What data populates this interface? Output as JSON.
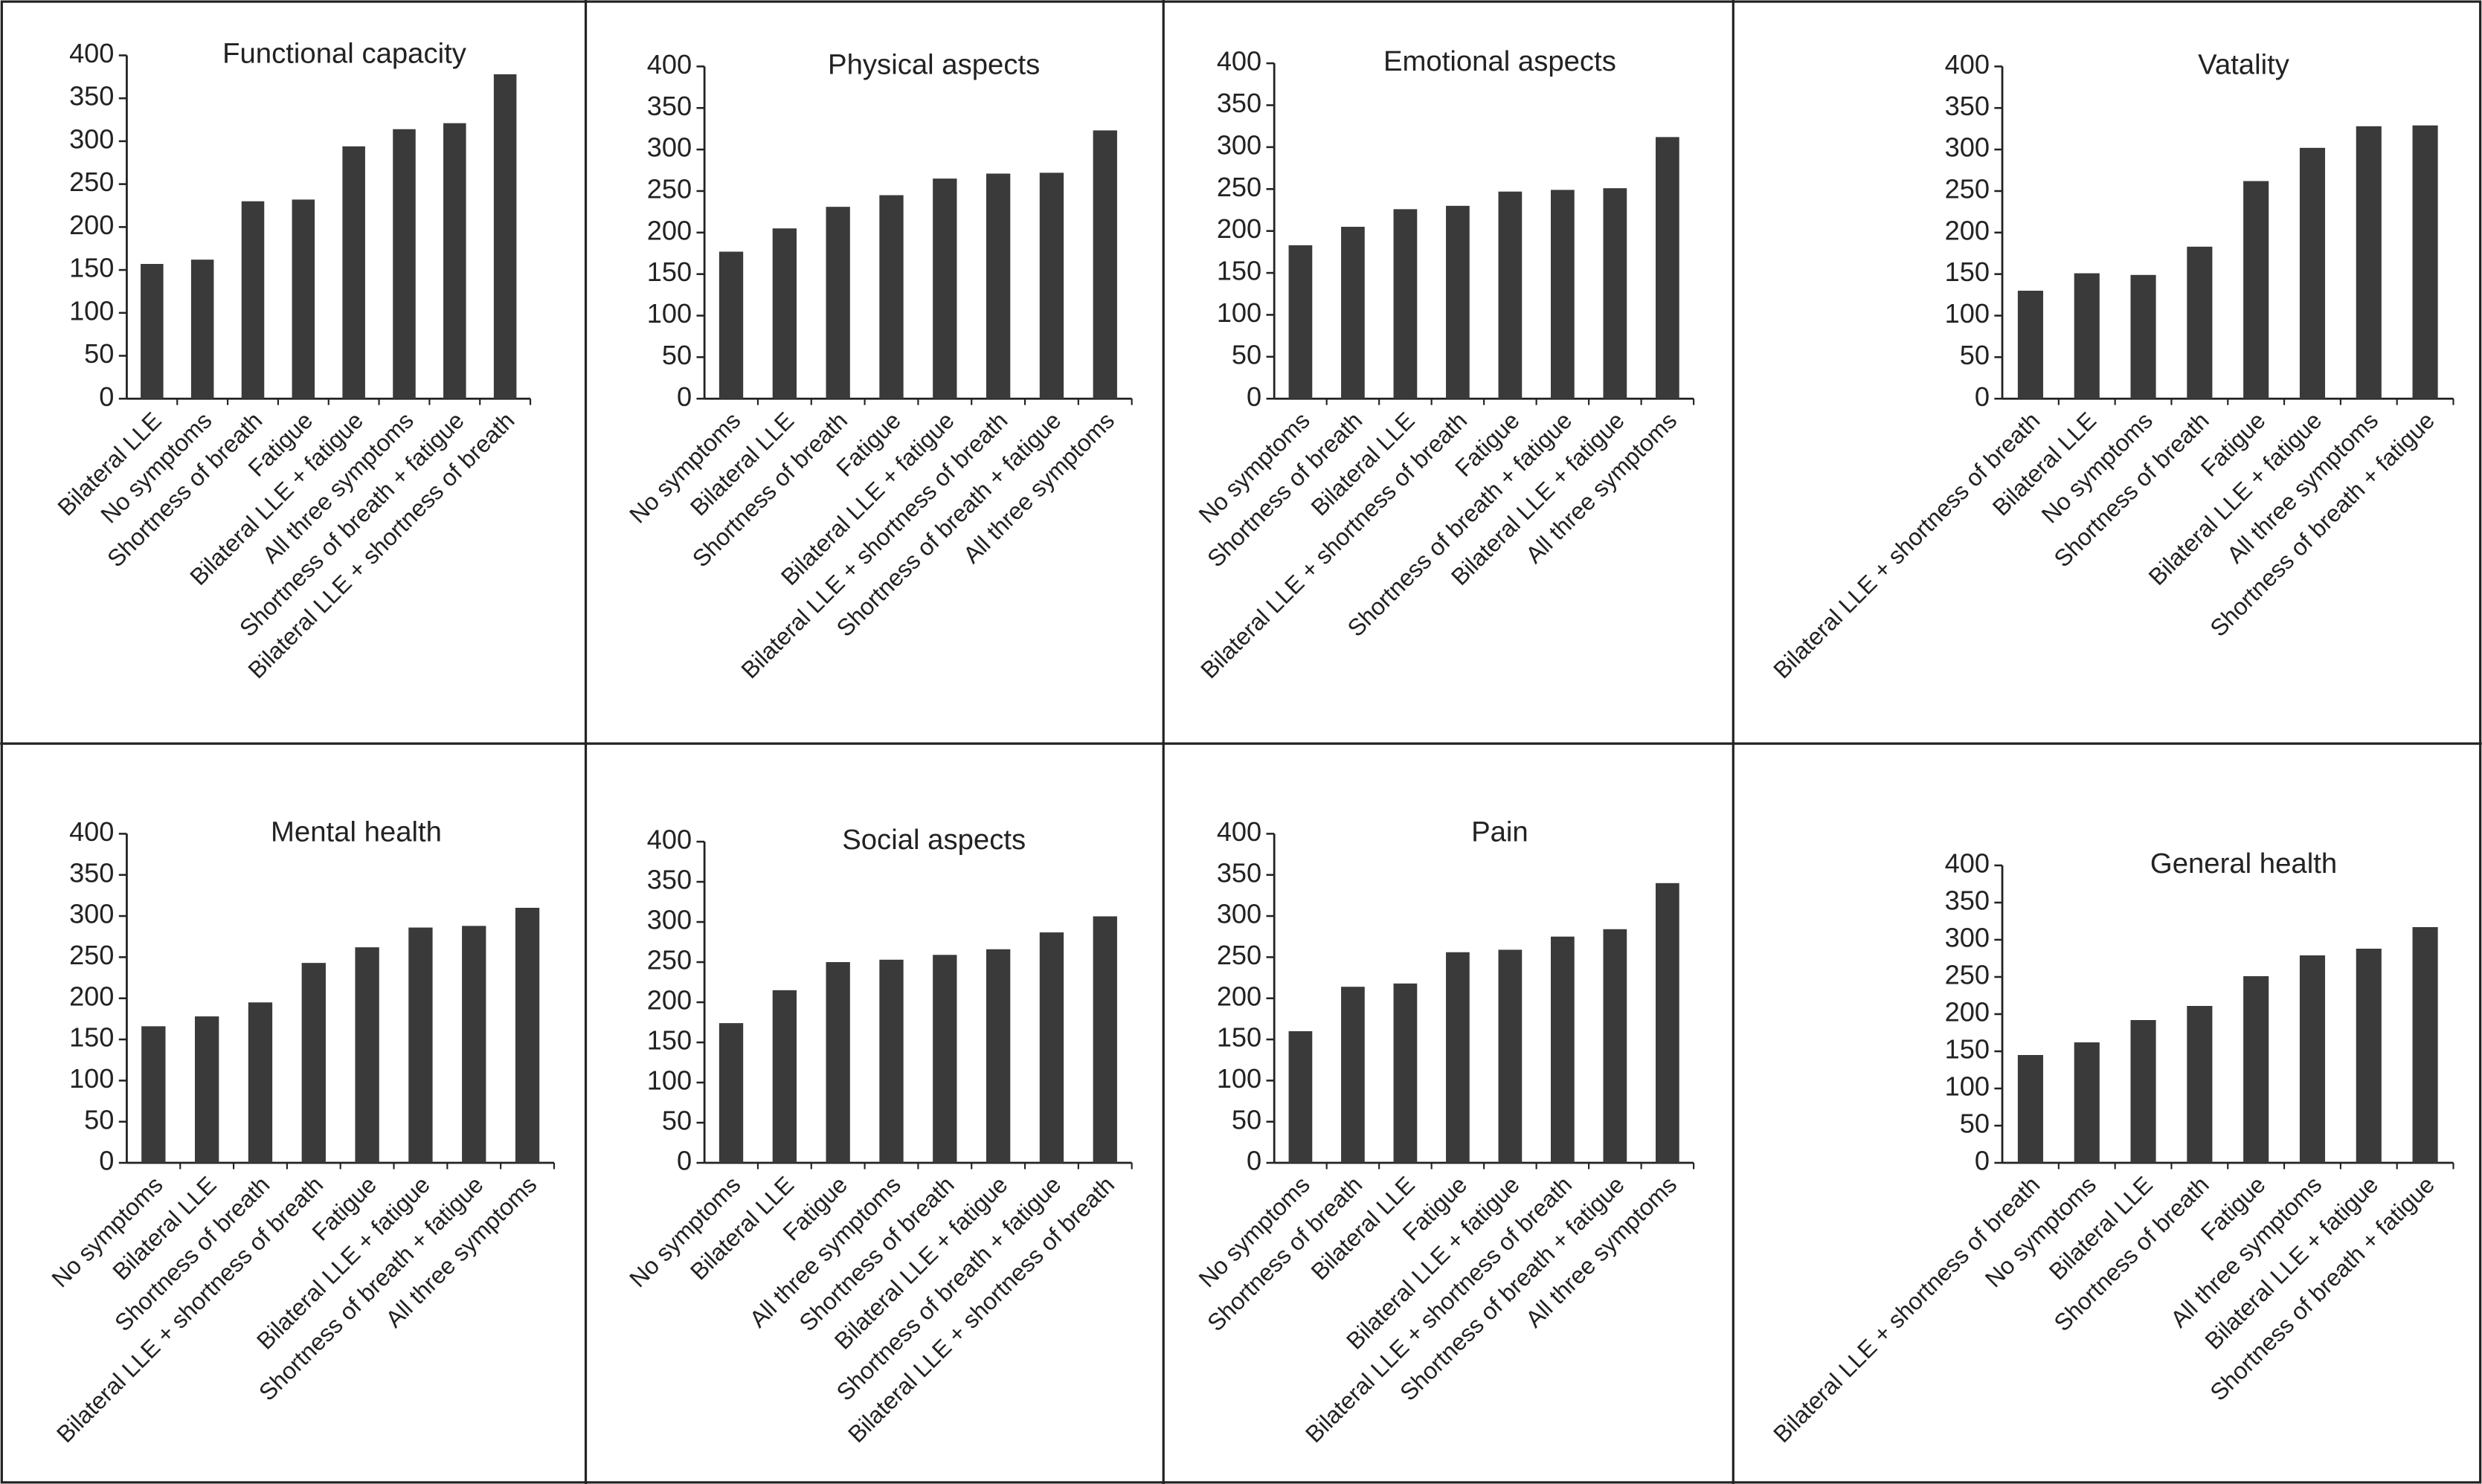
{
  "chart_data": [
    {
      "type": "bar",
      "title": "Functional capacity",
      "color": "#3a3a3a",
      "categories": [
        "Bilateral LLE",
        "No symptoms",
        "Shortness of breath",
        "Fatigue",
        "Bilateral LLE + fatigue",
        "All three symptoms",
        "Shortness of breath + fatigue",
        "Bilateral LLE + shortness of breath"
      ],
      "values": [
        157,
        162,
        230,
        232,
        294,
        314,
        321,
        378
      ],
      "ylim": [
        0,
        400
      ],
      "yticks": [
        0,
        50,
        100,
        150,
        200,
        250,
        300,
        350,
        400
      ]
    },
    {
      "type": "bar",
      "title": "Physical aspects",
      "color": "#3a3a3a",
      "categories": [
        "No symptoms",
        "Bilateral LLE",
        "Shortness of breath",
        "Fatigue",
        "Bilateral LLE + fatigue",
        "Bilateral LLE + shortness of breath",
        "Shortness of breath + fatigue",
        "All three symptoms"
      ],
      "values": [
        177,
        205,
        231,
        245,
        265,
        271,
        272,
        323
      ],
      "ylim": [
        0,
        400
      ],
      "yticks": [
        0,
        50,
        100,
        150,
        200,
        250,
        300,
        350,
        400
      ]
    },
    {
      "type": "bar",
      "title": "Emotional aspects",
      "color": "#3a3a3a",
      "categories": [
        "No symptoms",
        "Shortness of breath",
        "Bilateral LLE",
        "Bilateral LLE + shortness of breath",
        "Fatigue",
        "Shortness of breath + fatigue",
        "Bilateral LLE + fatigue",
        "All three symptoms"
      ],
      "values": [
        183,
        205,
        226,
        230,
        247,
        249,
        251,
        312
      ],
      "ylim": [
        0,
        400
      ],
      "yticks": [
        0,
        50,
        100,
        150,
        200,
        250,
        300,
        350,
        400
      ]
    },
    {
      "type": "bar",
      "title": "Vatality",
      "color": "#3a3a3a",
      "categories": [
        "Bilateral LLE + shortness of breath",
        "Bilateral LLE",
        "No symptoms",
        "Shortness of breath",
        "Fatigue",
        "Bilateral LLE + fatigue",
        "All three symptoms",
        "Shortness of breath + fatigue"
      ],
      "values": [
        130,
        151,
        149,
        183,
        262,
        302,
        328,
        329
      ],
      "ylim": [
        0,
        400
      ],
      "yticks": [
        0,
        50,
        100,
        150,
        200,
        250,
        300,
        350,
        400
      ]
    },
    {
      "type": "bar",
      "title": "Mental health",
      "color": "#3a3a3a",
      "categories": [
        "No symptoms",
        "Bilateral LLE",
        "Shortness of breath",
        "Bilateral LLE + shortness of breath",
        "Fatigue",
        "Bilateral LLE + fatigue",
        "Shortness of breath + fatigue",
        "All three symptoms"
      ],
      "values": [
        166,
        178,
        195,
        243,
        262,
        286,
        288,
        310
      ],
      "ylim": [
        0,
        400
      ],
      "yticks": [
        0,
        50,
        100,
        150,
        200,
        250,
        300,
        350,
        400
      ]
    },
    {
      "type": "bar",
      "title": "Social aspects",
      "color": "#3a3a3a",
      "categories": [
        "No symptoms",
        "Bilateral LLE",
        "Fatigue",
        "All three symptoms",
        "Shortness of breath",
        "Bilateral LLE + fatigue",
        "Shortness of breath + fatigue",
        "Bilateral LLE + shortness of breath"
      ],
      "values": [
        174,
        215,
        250,
        253,
        259,
        266,
        287,
        307
      ],
      "ylim": [
        0,
        400
      ],
      "yticks": [
        0,
        50,
        100,
        150,
        200,
        250,
        300,
        350,
        400
      ]
    },
    {
      "type": "bar",
      "title": "Pain",
      "color": "#3a3a3a",
      "categories": [
        "No symptoms",
        "Shortness of breath",
        "Bilateral LLE",
        "Fatigue",
        "Bilateral LLE + fatigue",
        "Bilateral LLE + shortness of breath",
        "Shortness of breath + fatigue",
        "All three symptoms"
      ],
      "values": [
        160,
        214,
        218,
        256,
        259,
        275,
        284,
        340
      ],
      "ylim": [
        0,
        400
      ],
      "yticks": [
        0,
        50,
        100,
        150,
        200,
        250,
        300,
        350,
        400
      ]
    },
    {
      "type": "bar",
      "title": "General health",
      "color": "#3a3a3a",
      "categories": [
        "Bilateral LLE + shortness of breath",
        "No symptoms",
        "Bilateral LLE",
        "Shortness of breath",
        "Fatigue",
        "All three symptoms",
        "Bilateral LLE + fatigue",
        "Shortness of breath + fatigue"
      ],
      "values": [
        145,
        162,
        192,
        211,
        251,
        279,
        288,
        317
      ],
      "ylim": [
        0,
        400
      ],
      "yticks": [
        0,
        50,
        100,
        150,
        200,
        250,
        300,
        350,
        400
      ]
    }
  ]
}
